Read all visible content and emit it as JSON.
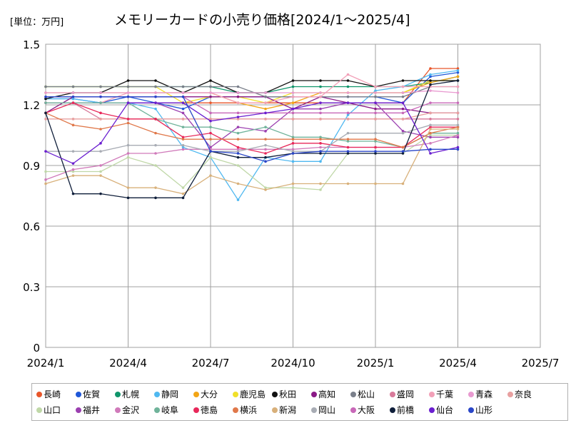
{
  "unit_label": "[単位：万円]",
  "chart_data": {
    "type": "line",
    "title": "メモリーカードの小売り価格[2024/1～2025/4]",
    "xlabel": "",
    "ylabel": "",
    "ylim": [
      0,
      1.5
    ],
    "yticks": [
      "0",
      "0.3",
      "0.6",
      "0.9",
      "1.2",
      "1.5"
    ],
    "xlim": [
      "2024/1",
      "2025/7"
    ],
    "xticks": [
      "2024/1",
      "2024/4",
      "2024/7",
      "2024/10",
      "2025/1",
      "2025/4",
      "2025/7"
    ],
    "grid": true,
    "legend_position": "bottom",
    "x": [
      "2024/1",
      "2024/2",
      "2024/3",
      "2024/4",
      "2024/5",
      "2024/6",
      "2024/7",
      "2024/8",
      "2024/9",
      "2024/10",
      "2024/11",
      "2024/12",
      "2025/1",
      "2025/2",
      "2025/3",
      "2025/4"
    ],
    "series": [
      {
        "name": "長崎",
        "color": "#e8562a",
        "values": [
          1.21,
          1.21,
          1.21,
          1.21,
          1.21,
          1.21,
          1.21,
          1.21,
          1.21,
          1.21,
          1.21,
          1.21,
          1.21,
          1.21,
          1.38,
          1.38
        ]
      },
      {
        "name": "佐賀",
        "color": "#1f57d8",
        "values": [
          1.23,
          1.23,
          1.21,
          1.24,
          1.21,
          1.18,
          1.24,
          1.24,
          1.24,
          1.24,
          1.24,
          1.24,
          1.24,
          1.21,
          1.34,
          1.36
        ]
      },
      {
        "name": "札幌",
        "color": "#10956b",
        "values": [
          1.29,
          1.29,
          1.29,
          1.29,
          1.29,
          1.29,
          1.29,
          1.26,
          1.26,
          1.29,
          1.29,
          1.29,
          1.29,
          1.29,
          1.31,
          1.34
        ]
      },
      {
        "name": "静岡",
        "color": "#4fb8f0",
        "values": [
          1.23,
          1.23,
          1.21,
          1.21,
          1.18,
          0.99,
          0.94,
          0.73,
          0.94,
          0.92,
          0.92,
          1.15,
          1.27,
          1.29,
          1.35,
          1.37
        ]
      },
      {
        "name": "大分",
        "color": "#f2a516",
        "values": [
          1.26,
          1.26,
          1.26,
          1.26,
          1.26,
          1.26,
          1.26,
          1.21,
          1.18,
          1.21,
          1.26,
          1.26,
          1.26,
          1.26,
          1.31,
          1.34
        ]
      },
      {
        "name": "鹿児島",
        "color": "#f0e02a",
        "values": [
          1.29,
          1.29,
          1.29,
          1.29,
          1.29,
          1.21,
          1.24,
          1.24,
          1.21,
          1.26,
          1.26,
          1.26,
          1.26,
          1.26,
          1.32,
          1.32
        ]
      },
      {
        "name": "秋田",
        "color": "#111111",
        "values": [
          1.23,
          1.26,
          1.26,
          1.32,
          1.32,
          1.26,
          1.32,
          1.26,
          1.26,
          1.32,
          1.32,
          1.32,
          1.29,
          1.32,
          1.32,
          1.32
        ]
      },
      {
        "name": "高知",
        "color": "#8a1a86",
        "values": [
          1.16,
          1.24,
          1.24,
          1.24,
          1.24,
          1.24,
          1.24,
          1.24,
          1.24,
          1.18,
          1.24,
          1.21,
          1.18,
          1.18,
          1.16,
          1.16
        ]
      },
      {
        "name": "松山",
        "color": "#7a7f8a",
        "values": [
          1.29,
          1.29,
          1.29,
          1.29,
          1.29,
          1.29,
          1.29,
          1.29,
          1.24,
          1.24,
          1.24,
          1.24,
          1.24,
          1.24,
          1.29,
          1.29
        ]
      },
      {
        "name": "盛岡",
        "color": "#d87a9a",
        "values": [
          1.21,
          1.21,
          1.13,
          1.13,
          1.13,
          1.13,
          1.13,
          1.13,
          1.13,
          1.13,
          1.13,
          1.13,
          1.13,
          1.13,
          1.13,
          1.13
        ]
      },
      {
        "name": "千葉",
        "color": "#f2a0b8",
        "values": [
          1.21,
          1.21,
          1.21,
          1.26,
          1.26,
          1.26,
          1.26,
          1.21,
          1.21,
          1.24,
          1.24,
          1.35,
          1.29,
          1.29,
          1.29,
          1.29
        ]
      },
      {
        "name": "青森",
        "color": "#e89ad0",
        "values": [
          1.26,
          1.26,
          1.26,
          1.26,
          1.26,
          1.26,
          1.26,
          1.26,
          1.26,
          1.26,
          1.26,
          1.26,
          1.26,
          1.26,
          1.27,
          1.26
        ]
      },
      {
        "name": "奈良",
        "color": "#e8a0a0",
        "values": [
          1.13,
          1.13,
          1.13,
          1.13,
          1.13,
          1.13,
          1.13,
          1.13,
          1.13,
          1.13,
          1.13,
          1.13,
          1.13,
          1.13,
          1.16,
          1.16
        ]
      },
      {
        "name": "山口",
        "color": "#c0d8a8",
        "values": [
          0.87,
          0.87,
          0.87,
          0.94,
          0.9,
          0.79,
          0.94,
          0.9,
          0.79,
          0.79,
          0.78,
          0.96,
          0.96,
          0.96,
          1.05,
          1.05
        ]
      },
      {
        "name": "福井",
        "color": "#9b3fb0",
        "values": [
          1.21,
          1.21,
          1.21,
          1.21,
          1.21,
          1.16,
          0.99,
          1.09,
          1.07,
          1.18,
          1.18,
          1.21,
          1.21,
          1.07,
          1.04,
          1.04
        ]
      },
      {
        "name": "金沢",
        "color": "#d07aba",
        "values": [
          0.83,
          0.88,
          0.9,
          0.96,
          0.96,
          0.98,
          0.98,
          0.98,
          0.98,
          0.98,
          0.99,
          0.99,
          0.99,
          0.99,
          1.01,
          1.05
        ]
      },
      {
        "name": "岐阜",
        "color": "#6fb39a",
        "values": [
          1.21,
          1.21,
          1.21,
          1.21,
          1.13,
          1.09,
          1.09,
          1.06,
          1.09,
          1.04,
          1.04,
          1.02,
          1.02,
          0.99,
          1.06,
          1.06
        ]
      },
      {
        "name": "徳島",
        "color": "#e8285a",
        "values": [
          1.16,
          1.21,
          1.16,
          1.13,
          1.13,
          1.04,
          1.06,
          0.99,
          0.96,
          1.01,
          1.01,
          0.99,
          0.99,
          0.99,
          1.09,
          1.09
        ]
      },
      {
        "name": "横浜",
        "color": "#e0784a",
        "values": [
          1.16,
          1.1,
          1.08,
          1.11,
          1.06,
          1.03,
          1.03,
          1.03,
          1.03,
          1.03,
          1.03,
          1.03,
          1.03,
          0.99,
          1.06,
          1.09
        ]
      },
      {
        "name": "新潟",
        "color": "#d8b07a",
        "values": [
          0.81,
          0.85,
          0.85,
          0.79,
          0.79,
          0.76,
          0.85,
          0.81,
          0.78,
          0.81,
          0.81,
          0.81,
          0.81,
          0.81,
          1.08,
          1.08
        ]
      },
      {
        "name": "岡山",
        "color": "#a8acb4",
        "values": [
          0.97,
          0.97,
          0.97,
          1.0,
          1.0,
          1.0,
          0.97,
          0.97,
          1.0,
          0.97,
          0.97,
          1.06,
          1.06,
          1.06,
          1.1,
          1.1
        ]
      },
      {
        "name": "大阪",
        "color": "#c868b8",
        "values": [
          1.24,
          1.24,
          1.24,
          1.24,
          1.24,
          1.24,
          1.16,
          1.16,
          1.16,
          1.16,
          1.16,
          1.16,
          1.16,
          1.16,
          1.21,
          1.21
        ]
      },
      {
        "name": "前橋",
        "color": "#0f1e3a",
        "values": [
          1.16,
          0.76,
          0.76,
          0.74,
          0.74,
          0.74,
          0.97,
          0.94,
          0.94,
          0.96,
          0.96,
          0.96,
          0.96,
          0.96,
          1.3,
          1.32
        ]
      },
      {
        "name": "仙台",
        "color": "#6a1ed0",
        "values": [
          0.97,
          0.91,
          1.01,
          1.21,
          1.21,
          1.21,
          1.12,
          1.14,
          1.16,
          1.18,
          1.21,
          1.21,
          1.21,
          1.21,
          0.96,
          0.99
        ]
      },
      {
        "name": "山形",
        "color": "#2a46c8",
        "values": [
          1.24,
          1.24,
          1.24,
          1.24,
          1.24,
          1.24,
          0.97,
          0.96,
          0.92,
          0.96,
          0.97,
          0.97,
          0.97,
          0.97,
          0.98,
          0.98
        ]
      }
    ]
  }
}
